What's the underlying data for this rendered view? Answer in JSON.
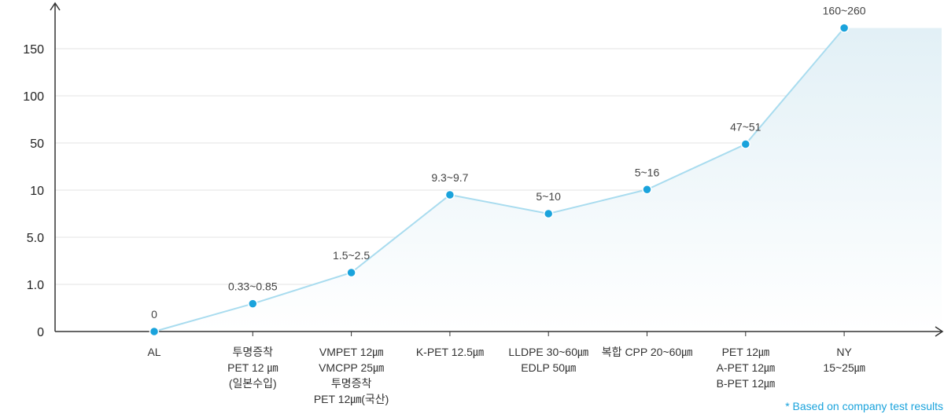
{
  "chart_data": {
    "type": "area",
    "title": "",
    "xlabel": "",
    "ylabel": "",
    "y_tick_labels": [
      "0",
      "1.0",
      "5.0",
      "10",
      "50",
      "100",
      "150"
    ],
    "categories": [
      [
        "AL"
      ],
      [
        "투명증착",
        "PET 12 ㎛",
        "(일본수입)"
      ],
      [
        "VMPET 12㎛",
        "VMCPP 25㎛",
        "투명증착",
        "PET 12㎛(국산)"
      ],
      [
        "K-PET 12.5㎛"
      ],
      [
        "LLDPE 30~60㎛",
        "EDLP 50㎛"
      ],
      [
        "복합 CPP 20~60㎛"
      ],
      [
        "PET 12㎛",
        "A-PET 12㎛",
        "B-PET 12㎛"
      ],
      [
        "NY",
        "15~25㎛"
      ]
    ],
    "values": [
      0,
      0.59,
      2.0,
      9.5,
      7.5,
      10.5,
      49,
      172
    ],
    "data_labels": [
      "0",
      "0.33~0.85",
      "1.5~2.5",
      "9.3~9.7",
      "5~10",
      "5~16",
      "47~51",
      "160~260"
    ],
    "scale": "piecewise (ticks 0, 1.0, 5.0, 10, 50, 100, 150 equally spaced)",
    "grid": true,
    "colors": {
      "line": "#a9dcef",
      "marker": "#1aa3dc",
      "fill_top": "#e2f0f6",
      "fill_bottom": "#ffffff",
      "grid": "#e3e3e3",
      "axis": "#333333"
    },
    "footnote": "* Based on company test results"
  }
}
